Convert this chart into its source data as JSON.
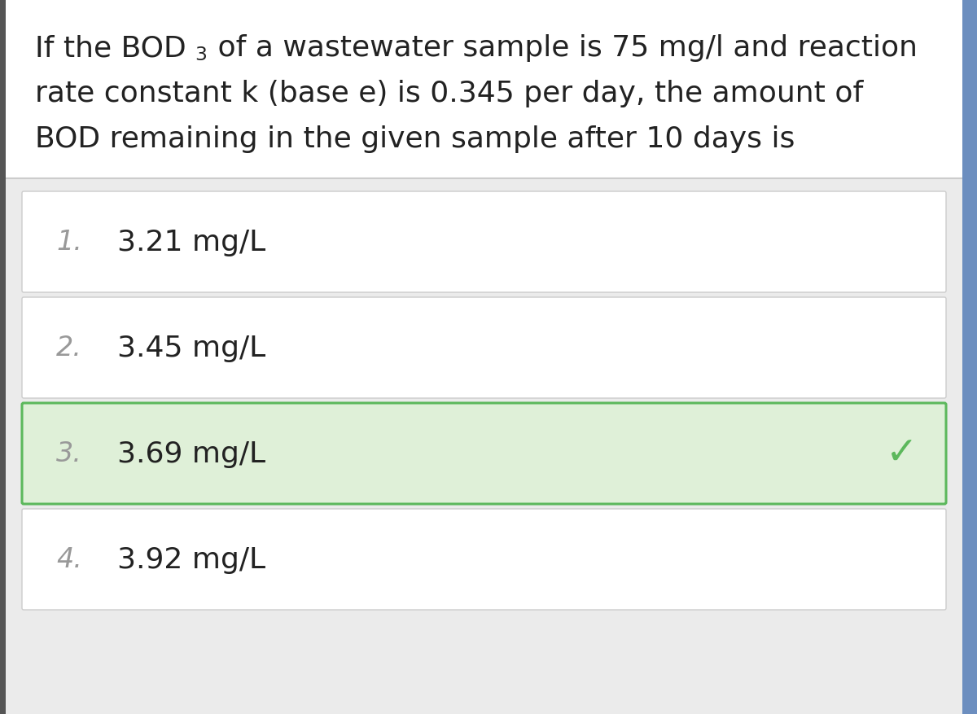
{
  "background_color": "#f0f0f0",
  "question_bg": "#ffffff",
  "options_area_bg": "#ebebeb",
  "option_default_bg": "#ffffff",
  "option_correct_bg": "#dff0d8",
  "option_border_default": "#cccccc",
  "option_border_correct": "#5cb85c",
  "right_border_color": "#6c8ebf",
  "left_border_color": "#555555",
  "options": [
    {
      "number": "1.",
      "text": "3.21 mg/L",
      "correct": false
    },
    {
      "number": "2.",
      "text": "3.45 mg/L",
      "correct": false
    },
    {
      "number": "3.",
      "text": "3.69 mg/L",
      "correct": true
    },
    {
      "number": "4.",
      "text": "3.92 mg/L",
      "correct": false
    }
  ],
  "option_number_color": "#999999",
  "option_text_color": "#222222",
  "check_color": "#5cb85c",
  "text_color": "#222222",
  "font_size_question": 26,
  "font_size_option": 26,
  "font_size_number": 24
}
